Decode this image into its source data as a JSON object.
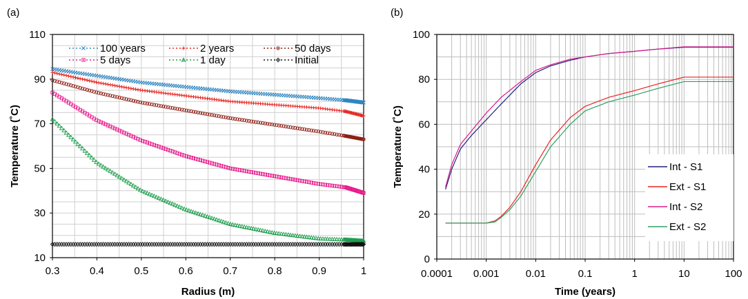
{
  "chart_data": [
    {
      "panel_label": "(a)",
      "type": "scatter",
      "xlabel": "Radius (m)",
      "ylabel": "Temperature (˚C)",
      "xlim": [
        0.3,
        1.0
      ],
      "ylim": [
        10,
        110
      ],
      "x_ticks": [
        "0.3",
        "0.4",
        "0.5",
        "0.6",
        "0.7",
        "0.8",
        "0.9",
        "1"
      ],
      "y_ticks": [
        "10",
        "30",
        "50",
        "70",
        "90",
        "110"
      ],
      "grid": true,
      "legend_position": "top",
      "series": [
        {
          "name": "100 years",
          "color": "#2e86c1",
          "marker": "x",
          "x": [
            0.3,
            0.4,
            0.5,
            0.6,
            0.7,
            0.8,
            0.9,
            0.96,
            1.0
          ],
          "y": [
            94.5,
            91.5,
            88.5,
            86.5,
            84.5,
            83,
            81.5,
            80.5,
            79.5
          ]
        },
        {
          "name": "2 years",
          "color": "#e8231f",
          "marker": "+",
          "x": [
            0.3,
            0.4,
            0.5,
            0.6,
            0.7,
            0.8,
            0.9,
            0.96,
            1.0
          ],
          "y": [
            93,
            88.5,
            85,
            82.5,
            80,
            78.5,
            77,
            75.5,
            73.5
          ]
        },
        {
          "name": "50 days",
          "color": "#8b1a10",
          "marker": "circle",
          "x": [
            0.3,
            0.4,
            0.5,
            0.6,
            0.7,
            0.8,
            0.9,
            0.96,
            1.0
          ],
          "y": [
            89.5,
            84,
            79.5,
            76,
            72.5,
            69.5,
            66.5,
            64.5,
            63
          ]
        },
        {
          "name": "5 days",
          "color": "#e8198b",
          "marker": "square",
          "x": [
            0.3,
            0.4,
            0.5,
            0.6,
            0.7,
            0.8,
            0.9,
            0.96,
            1.0
          ],
          "y": [
            84,
            71.5,
            62.5,
            55.5,
            50,
            46.5,
            43,
            41.5,
            39
          ]
        },
        {
          "name": "1 day",
          "color": "#1a9d4b",
          "marker": "triangle",
          "x": [
            0.3,
            0.4,
            0.5,
            0.6,
            0.7,
            0.8,
            0.9,
            0.96,
            1.0
          ],
          "y": [
            72,
            52.5,
            40,
            31.5,
            25,
            21,
            18.5,
            18,
            17.5
          ]
        },
        {
          "name": "Initial",
          "color": "#111111",
          "marker": "diamond",
          "x": [
            0.3,
            0.4,
            0.5,
            0.6,
            0.7,
            0.8,
            0.9,
            0.96,
            1.0
          ],
          "y": [
            16,
            16,
            16,
            16,
            16,
            16,
            16,
            16,
            16
          ]
        }
      ]
    },
    {
      "panel_label": "(b)",
      "type": "line",
      "xlabel": "Time (years)",
      "ylabel": "Temperature (˚C)",
      "xscale": "log",
      "xlim": [
        0.0001,
        100
      ],
      "ylim": [
        0,
        100
      ],
      "x_ticks": [
        "0.0001",
        "0.001",
        "0.01",
        "0.1",
        "1",
        "10",
        "100"
      ],
      "y_ticks": [
        "0",
        "20",
        "40",
        "60",
        "80",
        "100"
      ],
      "grid": true,
      "legend_position": "lower-right",
      "series": [
        {
          "name": "Int - S1",
          "color": "#1f1f7a",
          "x": [
            0.00015,
            0.0002,
            0.0003,
            0.0005,
            0.001,
            0.002,
            0.005,
            0.01,
            0.02,
            0.05,
            0.1,
            0.3,
            1,
            3,
            10,
            100
          ],
          "y": [
            31,
            40,
            49,
            55,
            62,
            69,
            78,
            83,
            86,
            88.5,
            90,
            91.5,
            92.5,
            93.5,
            94.3,
            94.3
          ]
        },
        {
          "name": "Ext - S1",
          "color": "#e8231f",
          "x": [
            0.00015,
            0.001,
            0.0015,
            0.002,
            0.003,
            0.005,
            0.01,
            0.02,
            0.05,
            0.1,
            0.3,
            1,
            3,
            10,
            100
          ],
          "y": [
            16,
            16,
            17,
            19,
            23,
            30,
            42,
            53,
            63,
            68,
            72,
            75,
            78,
            81,
            81
          ]
        },
        {
          "name": "Int - S2",
          "color": "#d81b8c",
          "x": [
            0.00015,
            0.0002,
            0.0003,
            0.0005,
            0.001,
            0.002,
            0.005,
            0.01,
            0.02,
            0.05,
            0.1,
            0.3,
            1,
            3,
            10,
            100
          ],
          "y": [
            32,
            42,
            51,
            57,
            65,
            72,
            79,
            84,
            86.5,
            89,
            90,
            91.5,
            92.5,
            93.5,
            94.5,
            94.5
          ]
        },
        {
          "name": "Ext - S2",
          "color": "#2e9e64",
          "x": [
            0.00015,
            0.001,
            0.0015,
            0.002,
            0.003,
            0.005,
            0.01,
            0.02,
            0.05,
            0.1,
            0.3,
            1,
            3,
            10,
            100
          ],
          "y": [
            16,
            16,
            16.5,
            18.5,
            22,
            28,
            39,
            50,
            60,
            66,
            70,
            73,
            76,
            79,
            79
          ]
        }
      ]
    }
  ]
}
